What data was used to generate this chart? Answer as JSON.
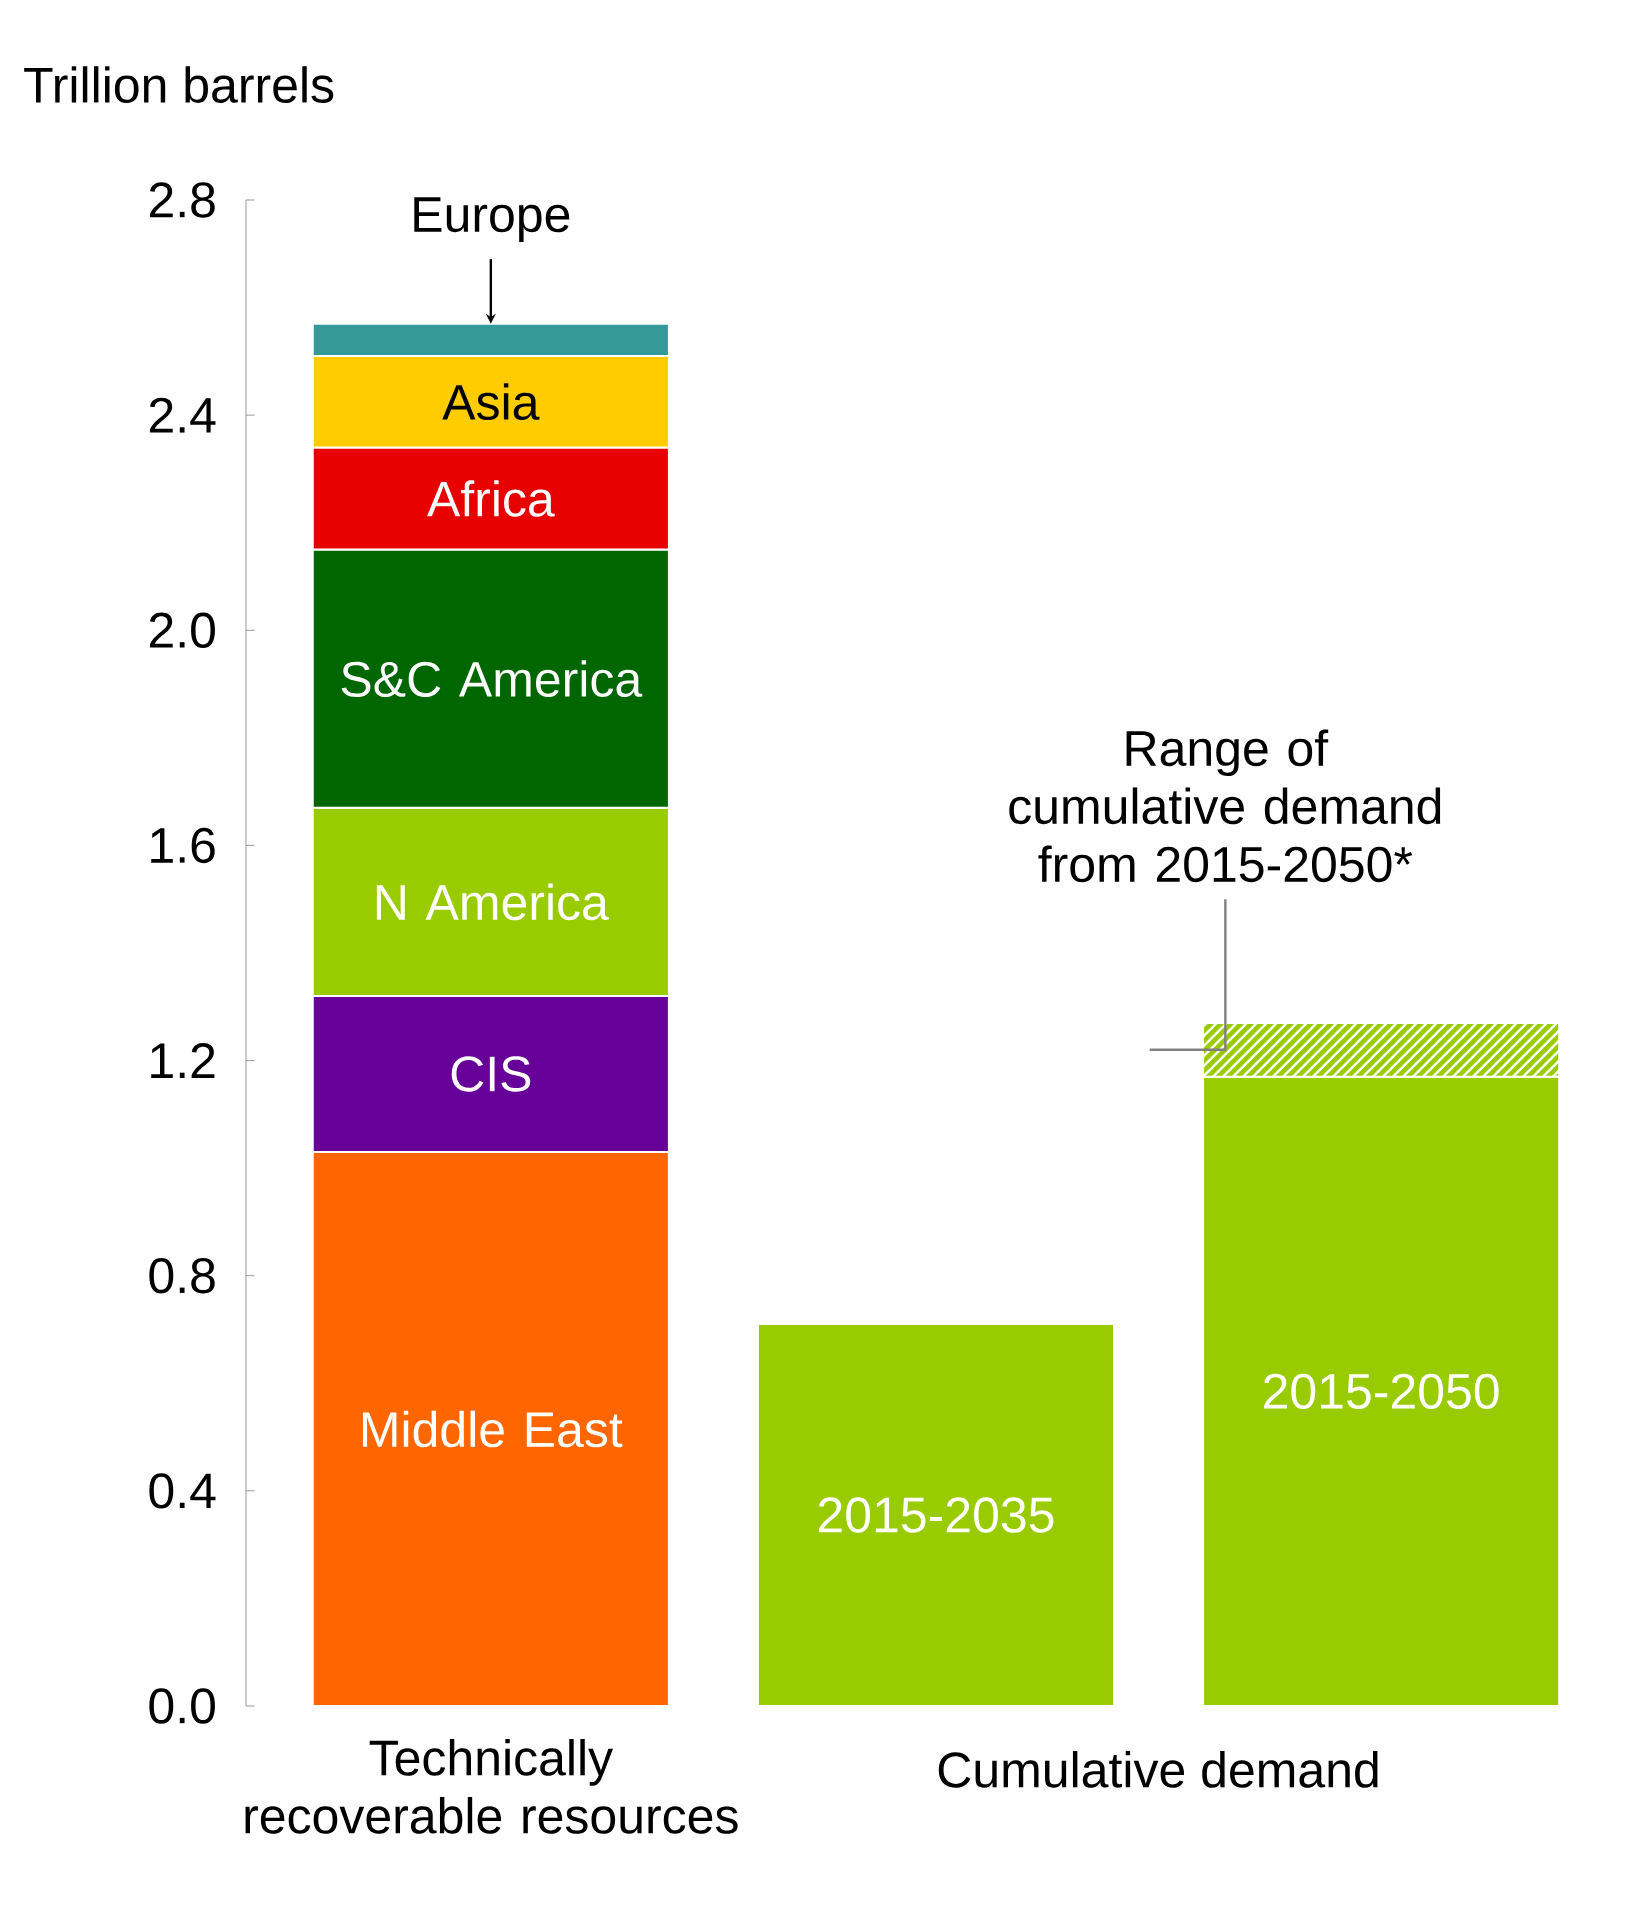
{
  "chart_data": {
    "type": "bar",
    "stacked": true,
    "ylabel": "Trillion barrels",
    "categories": [
      "Technically recoverable resources",
      null,
      null
    ],
    "series": [
      {
        "name": "Middle East",
        "color": "#ff6600",
        "values": [
          1.03,
          null,
          null
        ]
      },
      {
        "name": "CIS",
        "color": "#660099",
        "values": [
          0.29,
          null,
          null
        ]
      },
      {
        "name": "N America",
        "color": "#99cc00",
        "values": [
          0.35,
          null,
          null
        ]
      },
      {
        "name": "S&C America",
        "color": "#006600",
        "values": [
          0.48,
          null,
          null
        ]
      },
      {
        "name": "Africa",
        "color": "#e60000",
        "values": [
          0.19,
          null,
          null
        ]
      },
      {
        "name": "Asia",
        "color": "#ffcc00",
        "values": [
          0.17,
          null,
          null
        ]
      },
      {
        "name": "Europe",
        "color": "#339999",
        "values": [
          0.06,
          null,
          null
        ]
      },
      {
        "name": "2015-2035",
        "color": "#99cc00",
        "values": [
          null,
          0.71,
          null
        ]
      },
      {
        "name": "2015-2050",
        "color": "#99cc00",
        "values": [
          null,
          null,
          1.17
        ]
      },
      {
        "color": "#99cc00",
        "values": [
          null,
          null,
          0.1
        ]
      }
    ],
    "ylim": [
      0,
      2.8
    ],
    "yticks": [
      {
        "value": 0,
        "label": "0.0"
      },
      0.4,
      0.8,
      1.2,
      1.6,
      {
        "value": 2,
        "label": "2.0"
      },
      2.4,
      2.8
    ],
    "annotations": [
      "Range of cumulative demand from 2015-2050*",
      "Cumulative demand"
    ],
    "legend": false,
    "grid": false
  }
}
